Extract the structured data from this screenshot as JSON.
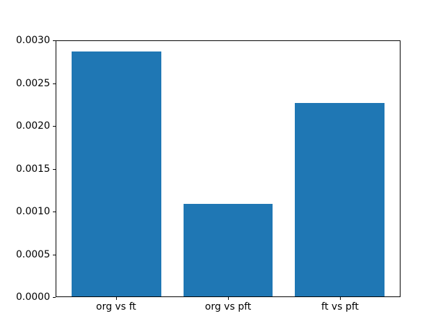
{
  "chart_data": {
    "type": "bar",
    "categories": [
      "org vs ft",
      "org vs pft",
      "ft vs pft"
    ],
    "values": [
      0.00288,
      0.00109,
      0.00227
    ],
    "title": "",
    "xlabel": "",
    "ylabel": "",
    "ylim": [
      0,
      0.003
    ],
    "xlim": [
      -0.54,
      2.54
    ],
    "yticks": [
      0.0,
      0.0005,
      0.001,
      0.0015,
      0.002,
      0.0025,
      0.003
    ],
    "ytick_labels": [
      "0.0000",
      "0.0005",
      "0.0010",
      "0.0015",
      "0.0020",
      "0.0025",
      "0.0030"
    ],
    "bar_color": "#1f77b4",
    "bar_width": 0.8,
    "grid": false,
    "legend": null,
    "background_color": "#ffffff",
    "spine_color": "#000000"
  }
}
